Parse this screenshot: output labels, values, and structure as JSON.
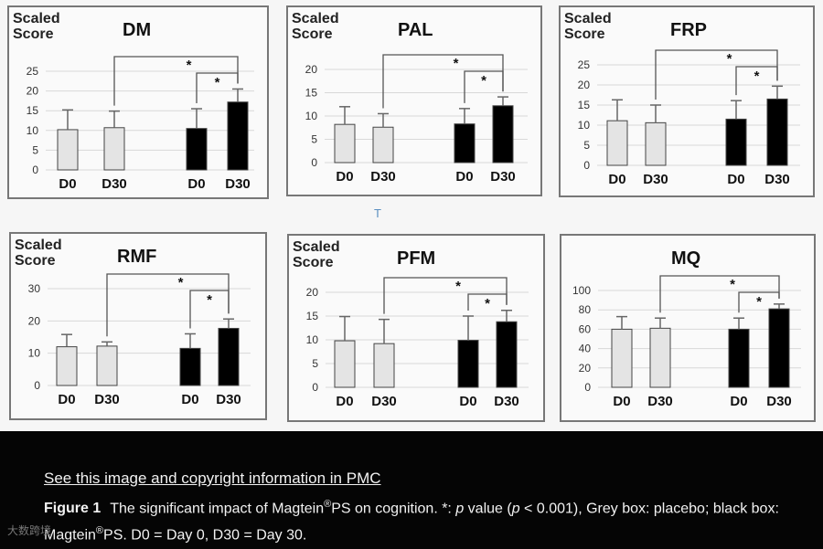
{
  "chart_data": [
    {
      "type": "bar",
      "title": "DM",
      "ylabel": "Scaled Score",
      "ylim": [
        0,
        25
      ],
      "yticks": [
        0,
        5,
        10,
        15,
        20,
        25
      ],
      "categories": [
        "D0",
        "D30",
        "D0",
        "D30"
      ],
      "series": [
        {
          "name": "placebo",
          "color": "#e4e4e4",
          "values": [
            10.2,
            10.7,
            null,
            null
          ],
          "errors": [
            5.0,
            4.2,
            null,
            null
          ]
        },
        {
          "name": "Magtein PS",
          "color": "#000000",
          "values": [
            null,
            null,
            10.5,
            17.2
          ],
          "errors": [
            null,
            null,
            5.0,
            3.3
          ]
        }
      ],
      "annotations": [
        "*",
        "*"
      ]
    },
    {
      "type": "bar",
      "title": "PAL",
      "ylabel": "Scaled Score",
      "ylim": [
        0,
        20
      ],
      "yticks": [
        0,
        5,
        10,
        15,
        20
      ],
      "categories": [
        "D0",
        "D30",
        "D0",
        "D30"
      ],
      "series": [
        {
          "name": "placebo",
          "color": "#e4e4e4",
          "values": [
            8.2,
            7.6,
            null,
            null
          ],
          "errors": [
            3.8,
            2.9,
            null,
            null
          ]
        },
        {
          "name": "Magtein PS",
          "color": "#000000",
          "values": [
            null,
            null,
            8.3,
            12.2
          ],
          "errors": [
            null,
            null,
            3.3,
            1.9
          ]
        }
      ],
      "annotations": [
        "*",
        "*"
      ]
    },
    {
      "type": "bar",
      "title": "FRP",
      "ylabel": "Scaled Score",
      "ylim": [
        0,
        25
      ],
      "yticks": [
        0,
        5,
        10,
        15,
        20,
        25
      ],
      "categories": [
        "D0",
        "D30",
        "D0",
        "D30"
      ],
      "series": [
        {
          "name": "placebo",
          "color": "#e4e4e4",
          "values": [
            11.1,
            10.6,
            null,
            null
          ],
          "errors": [
            5.2,
            4.4,
            null,
            null
          ]
        },
        {
          "name": "Magtein PS",
          "color": "#000000",
          "values": [
            null,
            null,
            11.5,
            16.5
          ],
          "errors": [
            null,
            null,
            4.6,
            3.2
          ]
        }
      ],
      "annotations": [
        "*",
        "*"
      ]
    },
    {
      "type": "bar",
      "title": "RMF",
      "ylabel": "Scaled Score",
      "ylim": [
        0,
        30
      ],
      "yticks": [
        0,
        10,
        20,
        30
      ],
      "categories": [
        "D0",
        "D30",
        "D0",
        "D30"
      ],
      "series": [
        {
          "name": "placebo",
          "color": "#e4e4e4",
          "values": [
            12.0,
            12.2,
            null,
            null
          ],
          "errors": [
            3.8,
            1.3,
            null,
            null
          ]
        },
        {
          "name": "Magtein PS",
          "color": "#000000",
          "values": [
            null,
            null,
            11.5,
            17.7
          ],
          "errors": [
            null,
            null,
            4.5,
            2.9
          ]
        }
      ],
      "annotations": [
        "*",
        "*"
      ]
    },
    {
      "type": "bar",
      "title": "PFM",
      "ylabel": "Scaled Score",
      "ylim": [
        0,
        20
      ],
      "yticks": [
        0,
        5,
        10,
        15,
        20
      ],
      "categories": [
        "D0",
        "D30",
        "D0",
        "D30"
      ],
      "series": [
        {
          "name": "placebo",
          "color": "#e4e4e4",
          "values": [
            9.8,
            9.2,
            null,
            null
          ],
          "errors": [
            5.1,
            5.1,
            null,
            null
          ]
        },
        {
          "name": "Magtein PS",
          "color": "#000000",
          "values": [
            null,
            null,
            9.9,
            13.8
          ],
          "errors": [
            null,
            null,
            5.1,
            2.4
          ]
        }
      ],
      "annotations": [
        "*",
        "*"
      ]
    },
    {
      "type": "bar",
      "title": "MQ",
      "ylabel": "",
      "ylim": [
        0,
        100
      ],
      "yticks": [
        0,
        20,
        40,
        60,
        80,
        100
      ],
      "categories": [
        "D0",
        "D30",
        "D0",
        "D30"
      ],
      "series": [
        {
          "name": "placebo",
          "color": "#e4e4e4",
          "values": [
            60.0,
            61.0,
            null,
            null
          ],
          "errors": [
            13.0,
            10.5,
            null,
            null
          ]
        },
        {
          "name": "Magtein PS",
          "color": "#000000",
          "values": [
            null,
            null,
            60.0,
            81.0
          ],
          "errors": [
            null,
            null,
            11.5,
            5.0
          ]
        }
      ],
      "annotations": [
        "*",
        "*"
      ]
    }
  ],
  "panel_labels": {
    "scaled": "Scaled",
    "score": "Score"
  },
  "stray_mark": "T",
  "caption": {
    "link": "See this image and copyright information in PMC",
    "label": "Figure 1",
    "text_1": "The significant impact of Magtein",
    "reg": "®",
    "text_2": "PS on cognition. *: ",
    "p1": "p",
    "text_3": " value (",
    "p2": "p",
    "text_4": " < 0.001), Grey box: placebo; black box: Magtein",
    "reg2": "®",
    "text_5": "PS. D0 = Day 0, D30 = Day 30."
  },
  "watermark": "大数跨境"
}
